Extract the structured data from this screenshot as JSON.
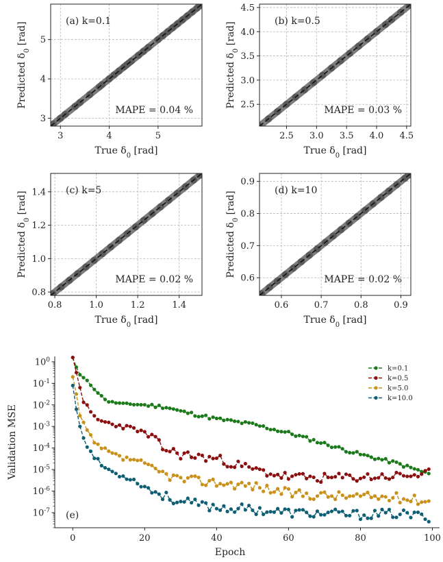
{
  "chart_data": [
    {
      "type": "scatter",
      "panel_label": "(a) k=0.1",
      "annotation": "MAPE = 0.04 %",
      "xlabel": "True δ0 [rad]",
      "ylabel": "Predicted δ0 [rad]",
      "xlim": [
        2.8,
        5.9
      ],
      "ylim": [
        2.8,
        5.9
      ],
      "xticks": [
        3,
        4,
        5
      ],
      "yticks": [
        3,
        4,
        5
      ],
      "xtick_labels": [
        "3",
        "4",
        "5"
      ],
      "ytick_labels": [
        "3",
        "4",
        "5"
      ],
      "grid": true,
      "points": [
        [
          2.85,
          2.85
        ],
        [
          3.0,
          3.0
        ],
        [
          3.1,
          3.1
        ],
        [
          3.3,
          3.3
        ],
        [
          3.4,
          3.4
        ],
        [
          3.6,
          3.6
        ],
        [
          3.8,
          3.8
        ],
        [
          3.85,
          3.85
        ],
        [
          4.0,
          4.0
        ],
        [
          4.1,
          4.1
        ],
        [
          4.2,
          4.2
        ],
        [
          4.3,
          4.3
        ],
        [
          4.35,
          4.35
        ],
        [
          4.4,
          4.4
        ],
        [
          4.45,
          4.45
        ],
        [
          4.6,
          4.6
        ],
        [
          4.7,
          4.7
        ],
        [
          4.8,
          4.8
        ],
        [
          5.0,
          5.0
        ],
        [
          5.1,
          5.1
        ],
        [
          5.2,
          5.2
        ],
        [
          5.3,
          5.3
        ],
        [
          5.4,
          5.4
        ],
        [
          5.5,
          5.5
        ],
        [
          5.6,
          5.6
        ],
        [
          5.7,
          5.7
        ],
        [
          5.8,
          5.8
        ],
        [
          5.88,
          5.88
        ]
      ],
      "identity_line": true
    },
    {
      "type": "scatter",
      "panel_label": "(b) k=0.5",
      "annotation": "MAPE = 0.03 %",
      "xlabel": "True δ0 [rad]",
      "ylabel": "Predicted δ0 [rad]",
      "xlim": [
        2.05,
        4.57
      ],
      "ylim": [
        2.05,
        4.57
      ],
      "xticks": [
        2.5,
        3.0,
        3.5,
        4.0,
        4.5
      ],
      "yticks": [
        2.5,
        3.0,
        3.5,
        4.0,
        4.5
      ],
      "xtick_labels": [
        "2.5",
        "3.0",
        "3.5",
        "4.0",
        "4.5"
      ],
      "ytick_labels": [
        "2.5",
        "3.0",
        "3.5",
        "4.0",
        "4.5"
      ],
      "grid": true,
      "points": [
        [
          2.05,
          2.05
        ],
        [
          2.2,
          2.2
        ],
        [
          2.35,
          2.35
        ],
        [
          2.5,
          2.5
        ],
        [
          2.65,
          2.65
        ],
        [
          2.8,
          2.8
        ],
        [
          2.95,
          2.95
        ],
        [
          3.1,
          3.1
        ],
        [
          3.25,
          3.25
        ],
        [
          3.4,
          3.4
        ],
        [
          3.55,
          3.55
        ],
        [
          3.7,
          3.7
        ],
        [
          3.85,
          3.85
        ],
        [
          4.0,
          4.0
        ],
        [
          4.15,
          4.15
        ],
        [
          4.25,
          4.25
        ],
        [
          4.4,
          4.4
        ],
        [
          4.55,
          4.55
        ]
      ],
      "identity_line": true
    },
    {
      "type": "scatter",
      "panel_label": "(c) k=5",
      "annotation": "MAPE = 0.02 %",
      "xlabel": "True δ0 [rad]",
      "ylabel": "Predicted δ0 [rad]",
      "xlim": [
        0.78,
        1.51
      ],
      "ylim": [
        0.78,
        1.51
      ],
      "xticks": [
        0.8,
        1.0,
        1.2,
        1.4
      ],
      "yticks": [
        0.8,
        1.0,
        1.2,
        1.4
      ],
      "xtick_labels": [
        "0.8",
        "1.0",
        "1.2",
        "1.4"
      ],
      "ytick_labels": [
        "0.8",
        "1.0",
        "1.2",
        "1.4"
      ],
      "grid": true,
      "points": [
        [
          0.79,
          0.79
        ],
        [
          0.83,
          0.83
        ],
        [
          0.87,
          0.87
        ],
        [
          0.91,
          0.91
        ],
        [
          0.95,
          0.95
        ],
        [
          0.99,
          0.99
        ],
        [
          1.03,
          1.03
        ],
        [
          1.07,
          1.07
        ],
        [
          1.11,
          1.11
        ],
        [
          1.15,
          1.15
        ],
        [
          1.19,
          1.19
        ],
        [
          1.23,
          1.23
        ],
        [
          1.27,
          1.27
        ],
        [
          1.31,
          1.31
        ],
        [
          1.35,
          1.35
        ],
        [
          1.39,
          1.39
        ],
        [
          1.43,
          1.43
        ],
        [
          1.47,
          1.47
        ],
        [
          1.5,
          1.5
        ]
      ],
      "identity_line": true
    },
    {
      "type": "scatter",
      "panel_label": "(d) k=10",
      "annotation": "MAPE = 0.02 %",
      "xlabel": "True δ0 [rad]",
      "ylabel": "Predicted δ0 [rad]",
      "xlim": [
        0.545,
        0.925
      ],
      "ylim": [
        0.545,
        0.925
      ],
      "xticks": [
        0.6,
        0.7,
        0.8,
        0.9
      ],
      "yticks": [
        0.6,
        0.7,
        0.8,
        0.9
      ],
      "xtick_labels": [
        "0.6",
        "0.7",
        "0.8",
        "0.9"
      ],
      "ytick_labels": [
        "0.6",
        "0.7",
        "0.8",
        "0.9"
      ],
      "grid": true,
      "points": [
        [
          0.55,
          0.55
        ],
        [
          0.57,
          0.57
        ],
        [
          0.59,
          0.59
        ],
        [
          0.61,
          0.61
        ],
        [
          0.63,
          0.63
        ],
        [
          0.65,
          0.65
        ],
        [
          0.67,
          0.67
        ],
        [
          0.69,
          0.69
        ],
        [
          0.71,
          0.71
        ],
        [
          0.73,
          0.73
        ],
        [
          0.75,
          0.75
        ],
        [
          0.77,
          0.77
        ],
        [
          0.79,
          0.79
        ],
        [
          0.81,
          0.81
        ],
        [
          0.83,
          0.83
        ],
        [
          0.85,
          0.85
        ],
        [
          0.87,
          0.87
        ],
        [
          0.89,
          0.89
        ],
        [
          0.91,
          0.91
        ],
        [
          0.92,
          0.92
        ]
      ],
      "identity_line": true
    },
    {
      "type": "line",
      "panel_label": "(e)",
      "xlabel": "Epoch",
      "ylabel": "Validation MSE",
      "xlim": [
        -5,
        102
      ],
      "ylim_log10": [
        -7.7,
        0.25
      ],
      "yscale": "log",
      "xticks": [
        0,
        20,
        40,
        60,
        80,
        100
      ],
      "xtick_labels": [
        "0",
        "20",
        "40",
        "60",
        "80",
        "100"
      ],
      "yticks_log10": [
        0,
        -1,
        -2,
        -3,
        -4,
        -5,
        -6,
        -7
      ],
      "ytick_labels": [
        "10^0",
        "10^-1",
        "10^-2",
        "10^-3",
        "10^-4",
        "10^-5",
        "10^-6",
        "10^-7"
      ],
      "grid": false,
      "legend_position": "top-right",
      "series": [
        {
          "name": "k=0.1",
          "color": "#1a7a1a",
          "knots_log10": [
            [
              0,
              0.2
            ],
            [
              1,
              -0.25
            ],
            [
              2,
              -0.6
            ],
            [
              4,
              -0.9
            ],
            [
              6,
              -1.25
            ],
            [
              8,
              -1.6
            ],
            [
              10,
              -1.85
            ],
            [
              14,
              -1.95
            ],
            [
              20,
              -2.0
            ],
            [
              26,
              -2.1
            ],
            [
              30,
              -2.3
            ],
            [
              40,
              -2.65
            ],
            [
              50,
              -2.9
            ],
            [
              60,
              -3.3
            ],
            [
              70,
              -3.8
            ],
            [
              80,
              -4.3
            ],
            [
              90,
              -4.7
            ],
            [
              99,
              -5.2
            ]
          ],
          "noise": 0.08,
          "seed": 11
        },
        {
          "name": "k=0.5",
          "color": "#8b0f0f",
          "knots_log10": [
            [
              0,
              0.2
            ],
            [
              1,
              -0.5
            ],
            [
              2,
              -1.2
            ],
            [
              3,
              -1.8
            ],
            [
              5,
              -2.4
            ],
            [
              7,
              -2.7
            ],
            [
              10,
              -2.85
            ],
            [
              14,
              -3.0
            ],
            [
              18,
              -3.15
            ],
            [
              22,
              -3.5
            ],
            [
              25,
              -4.0
            ],
            [
              30,
              -4.3
            ],
            [
              40,
              -4.5
            ],
            [
              50,
              -5.0
            ],
            [
              60,
              -5.35
            ],
            [
              70,
              -5.4
            ],
            [
              80,
              -5.35
            ],
            [
              90,
              -5.3
            ],
            [
              99,
              -5.2
            ]
          ],
          "noise": 0.22,
          "seed": 23
        },
        {
          "name": "k=5.0",
          "color": "#c9911a",
          "knots_log10": [
            [
              0,
              -0.7
            ],
            [
              1,
              -1.5
            ],
            [
              2,
              -2.5
            ],
            [
              4,
              -3.2
            ],
            [
              6,
              -3.8
            ],
            [
              10,
              -4.2
            ],
            [
              14,
              -4.5
            ],
            [
              18,
              -4.55
            ],
            [
              22,
              -5.0
            ],
            [
              30,
              -5.45
            ],
            [
              40,
              -5.6
            ],
            [
              50,
              -5.75
            ],
            [
              60,
              -6.1
            ],
            [
              70,
              -6.2
            ],
            [
              80,
              -6.25
            ],
            [
              90,
              -6.3
            ],
            [
              99,
              -6.45
            ]
          ],
          "noise": 0.22,
          "seed": 37
        },
        {
          "name": "k=10.0",
          "color": "#0e5f73",
          "knots_log10": [
            [
              0,
              -1.1
            ],
            [
              1,
              -2.2
            ],
            [
              2,
              -3.0
            ],
            [
              3,
              -3.5
            ],
            [
              5,
              -4.2
            ],
            [
              8,
              -4.8
            ],
            [
              12,
              -5.2
            ],
            [
              16,
              -5.4
            ],
            [
              20,
              -5.8
            ],
            [
              25,
              -6.2
            ],
            [
              30,
              -6.5
            ],
            [
              40,
              -6.75
            ],
            [
              50,
              -6.85
            ],
            [
              60,
              -7.0
            ],
            [
              70,
              -7.05
            ],
            [
              80,
              -7.1
            ],
            [
              90,
              -7.05
            ],
            [
              99,
              -7.2
            ]
          ],
          "noise": 0.22,
          "seed": 53
        }
      ]
    }
  ]
}
